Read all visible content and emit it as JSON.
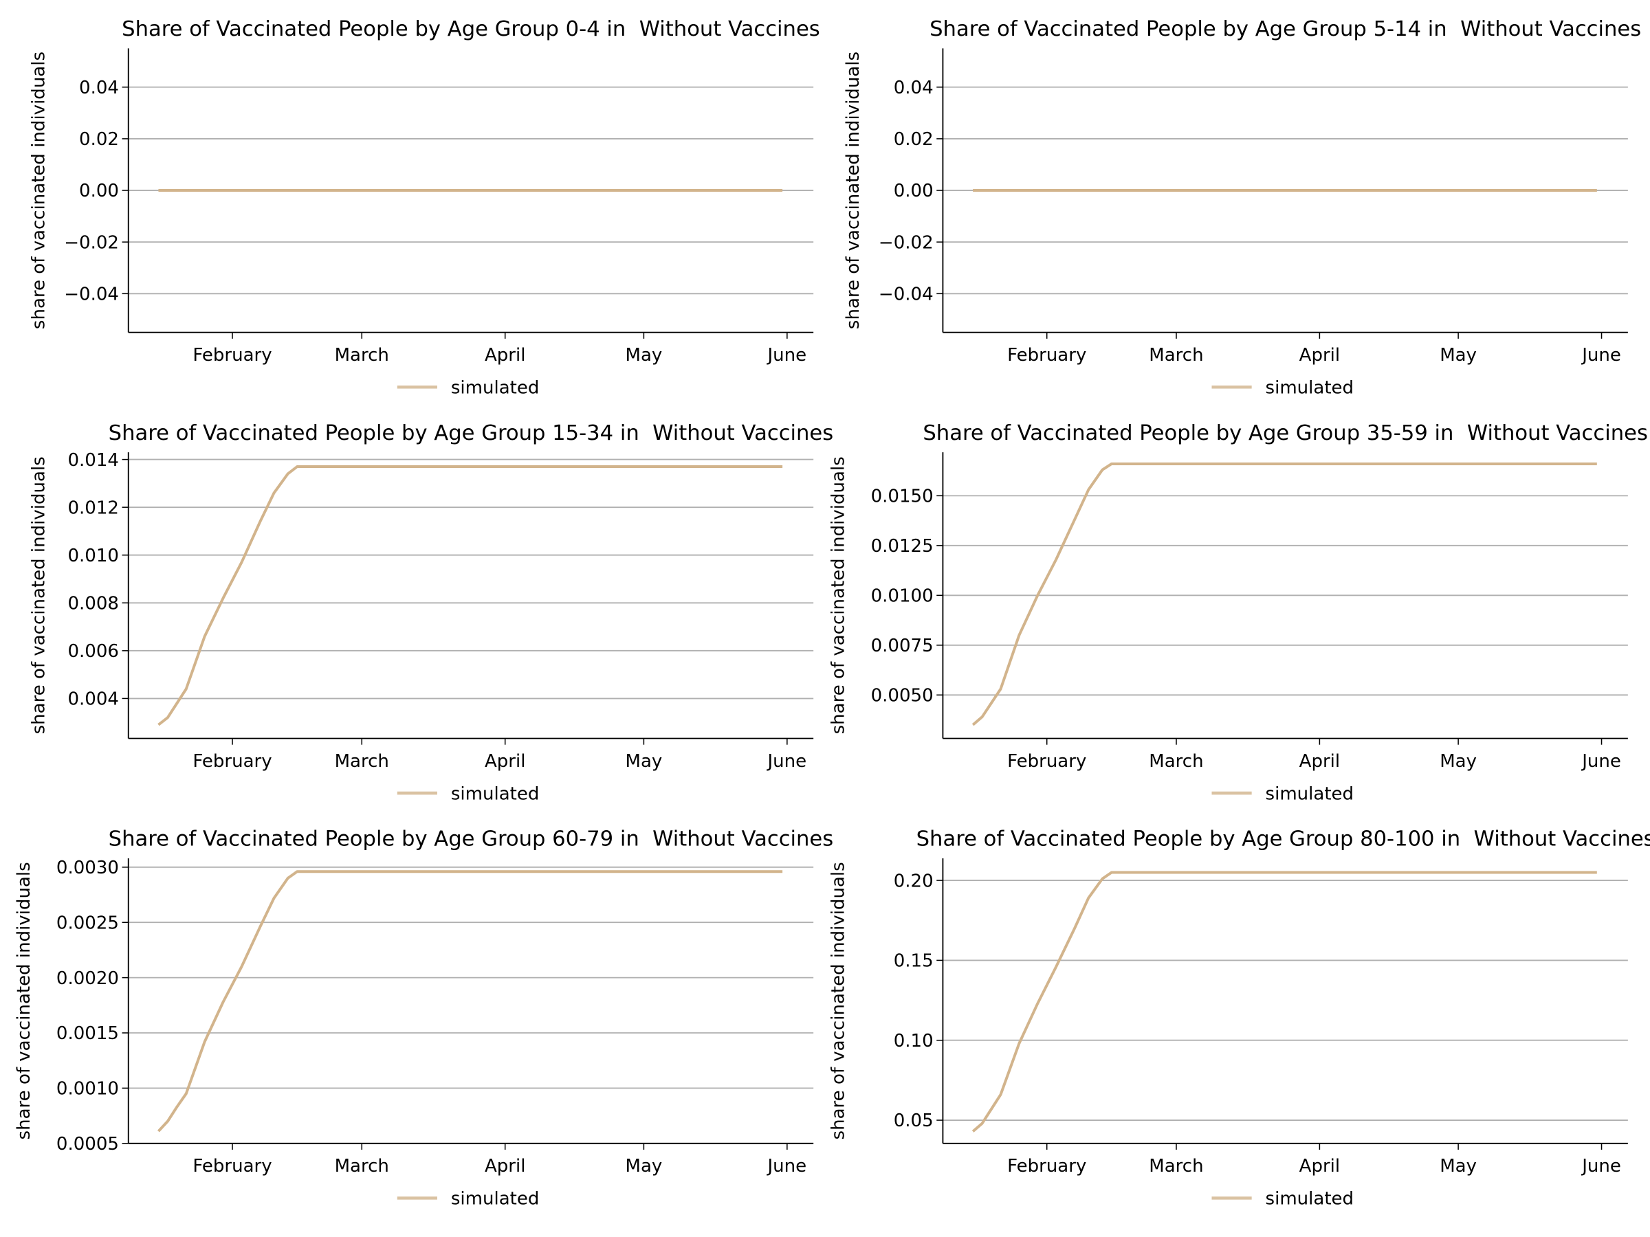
{
  "chart_data": [
    {
      "type": "line",
      "title": "Share of Vaccinated People by Age Group 0-4 in  Without Vaccines",
      "y_label": "share of vaccinated individuals",
      "x": [
        16,
        151
      ],
      "series": [
        {
          "name": "simulated",
          "color": "#d2b48c",
          "values": [
            0,
            0
          ]
        }
      ],
      "xlim": [
        9.5,
        157.7
      ],
      "xticks": [
        {
          "value": 32,
          "label": "February"
        },
        {
          "value": 60,
          "label": "March"
        },
        {
          "value": 91,
          "label": "April"
        },
        {
          "value": 121,
          "label": "May"
        },
        {
          "value": 152,
          "label": "June"
        }
      ],
      "ylim": [
        -0.055,
        0.055
      ],
      "yticks": [
        {
          "value": -0.04,
          "label": "−0.04"
        },
        {
          "value": -0.02,
          "label": "−0.02"
        },
        {
          "value": 0,
          "label": "0.00"
        },
        {
          "value": 0.02,
          "label": "0.02"
        },
        {
          "value": 0.04,
          "label": "0.04"
        }
      ],
      "grid": true,
      "legend": "below"
    },
    {
      "type": "line",
      "title": "Share of Vaccinated People by Age Group 5-14 in  Without Vaccines",
      "y_label": "share of vaccinated individuals",
      "x": [
        16,
        151
      ],
      "series": [
        {
          "name": "simulated",
          "color": "#d2b48c",
          "values": [
            0,
            0
          ]
        }
      ],
      "xlim": [
        9.5,
        157.7
      ],
      "xticks": [
        {
          "value": 32,
          "label": "February"
        },
        {
          "value": 60,
          "label": "March"
        },
        {
          "value": 91,
          "label": "April"
        },
        {
          "value": 121,
          "label": "May"
        },
        {
          "value": 152,
          "label": "June"
        }
      ],
      "ylim": [
        -0.055,
        0.055
      ],
      "yticks": [
        {
          "value": -0.04,
          "label": "−0.04"
        },
        {
          "value": -0.02,
          "label": "−0.02"
        },
        {
          "value": 0,
          "label": "0.00"
        },
        {
          "value": 0.02,
          "label": "0.02"
        },
        {
          "value": 0.04,
          "label": "0.04"
        }
      ],
      "grid": true,
      "legend": "below"
    },
    {
      "type": "line",
      "title": "Share of Vaccinated People by Age Group 15-34 in  Without Vaccines",
      "y_label": "share of vaccinated individuals",
      "x": [
        16,
        18,
        20,
        22,
        26,
        30,
        34,
        38,
        41,
        44,
        46,
        151
      ],
      "series": [
        {
          "name": "simulated",
          "color": "#d2b48c",
          "values": [
            0.0029,
            0.0032,
            0.0038,
            0.0044,
            0.0066,
            0.0082,
            0.0097,
            0.0114,
            0.0126,
            0.0134,
            0.0137,
            0.0137
          ]
        }
      ],
      "xlim": [
        9.5,
        157.7
      ],
      "xticks": [
        {
          "value": 32,
          "label": "February"
        },
        {
          "value": 60,
          "label": "March"
        },
        {
          "value": 91,
          "label": "April"
        },
        {
          "value": 121,
          "label": "May"
        },
        {
          "value": 152,
          "label": "June"
        }
      ],
      "ylim": [
        0.00233,
        0.0143
      ],
      "yticks": [
        0.004,
        0.006,
        0.008,
        {
          "value": 0.01,
          "label": "0.010"
        },
        0.012,
        0.014
      ],
      "grid": true,
      "legend": "below"
    },
    {
      "type": "line",
      "title": "Share of Vaccinated People by Age Group 35-59 in  Without Vaccines",
      "y_label": "share of vaccinated individuals",
      "x": [
        16,
        18,
        20,
        22,
        26,
        30,
        34,
        38,
        41,
        44,
        46,
        151
      ],
      "series": [
        {
          "name": "simulated",
          "color": "#d2b48c",
          "values": [
            0.0035,
            0.0039,
            0.0046,
            0.0053,
            0.008,
            0.01,
            0.0118,
            0.0138,
            0.0153,
            0.0163,
            0.0166,
            0.0166
          ]
        }
      ],
      "xlim": [
        9.5,
        157.7
      ],
      "xticks": [
        {
          "value": 32,
          "label": "February"
        },
        {
          "value": 60,
          "label": "March"
        },
        {
          "value": 91,
          "label": "April"
        },
        {
          "value": 121,
          "label": "May"
        },
        {
          "value": 152,
          "label": "June"
        }
      ],
      "ylim": [
        0.00282,
        0.01718
      ],
      "yticks": [
        {
          "value": 0.005,
          "label": "0.0050"
        },
        0.0075,
        {
          "value": 0.01,
          "label": "0.0100"
        },
        0.0125,
        {
          "value": 0.015,
          "label": "0.0150"
        }
      ],
      "grid": true,
      "legend": "below"
    },
    {
      "type": "line",
      "title": "Share of Vaccinated People by Age Group 60-79 in  Without Vaccines",
      "y_label": "share of vaccinated individuals",
      "x": [
        16,
        18,
        20,
        22,
        26,
        30,
        34,
        38,
        41,
        44,
        46,
        151
      ],
      "series": [
        {
          "name": "simulated",
          "color": "#d2b48c",
          "values": [
            0.00061,
            0.0007,
            0.00083,
            0.00095,
            0.00142,
            0.00178,
            0.0021,
            0.00246,
            0.00272,
            0.0029,
            0.00296,
            0.00296
          ]
        }
      ],
      "xlim": [
        9.5,
        157.7
      ],
      "xticks": [
        {
          "value": 32,
          "label": "February"
        },
        {
          "value": 60,
          "label": "March"
        },
        {
          "value": 91,
          "label": "April"
        },
        {
          "value": 121,
          "label": "May"
        },
        {
          "value": 152,
          "label": "June"
        }
      ],
      "ylim": [
        0.0005,
        0.00308
      ],
      "yticks": [
        0.0005,
        {
          "value": 0.001,
          "label": "0.0010"
        },
        0.0015,
        {
          "value": 0.002,
          "label": "0.0020"
        },
        0.0025,
        {
          "value": 0.003,
          "label": "0.0030"
        }
      ],
      "grid": true,
      "legend": "below"
    },
    {
      "type": "line",
      "title": "Share of Vaccinated People by Age Group 80-100 in  Without Vaccines",
      "y_label": "share of vaccinated individuals",
      "x": [
        16,
        18,
        20,
        22,
        26,
        30,
        34,
        38,
        41,
        44,
        46,
        151
      ],
      "series": [
        {
          "name": "simulated",
          "color": "#d2b48c",
          "values": [
            0.043,
            0.048,
            0.057,
            0.066,
            0.098,
            0.123,
            0.146,
            0.17,
            0.189,
            0.201,
            0.205,
            0.205
          ]
        }
      ],
      "xlim": [
        9.5,
        157.7
      ],
      "xticks": [
        {
          "value": 32,
          "label": "February"
        },
        {
          "value": 60,
          "label": "March"
        },
        {
          "value": 91,
          "label": "April"
        },
        {
          "value": 121,
          "label": "May"
        },
        {
          "value": 152,
          "label": "June"
        }
      ],
      "ylim": [
        0.0355,
        0.2138
      ],
      "yticks": [
        0.05,
        {
          "value": 0.1,
          "label": "0.10"
        },
        0.15,
        {
          "value": 0.2,
          "label": "0.20"
        }
      ],
      "grid": true,
      "legend": "below"
    }
  ]
}
